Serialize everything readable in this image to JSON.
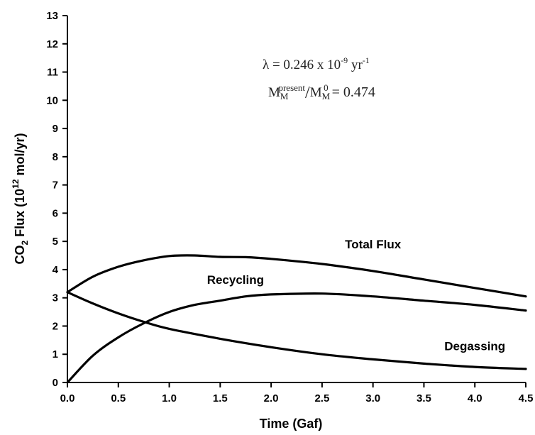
{
  "chart_data": {
    "type": "line",
    "xlabel": "Time (Gaf)",
    "ylabel": {
      "prefix": "CO",
      "subscript": "2",
      "middle": " Flux (10",
      "superscript": "12",
      "suffix": " mol/yr)"
    },
    "xlim": [
      0,
      4.5
    ],
    "ylim": [
      0,
      13
    ],
    "xticks": [
      "0.0",
      "0.5",
      "1.0",
      "1.5",
      "2.0",
      "2.5",
      "3.0",
      "3.5",
      "4.0",
      "4.5"
    ],
    "yticks": [
      "0",
      "1",
      "2",
      "3",
      "4",
      "5",
      "6",
      "7",
      "8",
      "9",
      "10",
      "11",
      "12",
      "13"
    ],
    "grid": false,
    "annotations": {
      "lambda": {
        "text": "λ = 0.246 x 10",
        "exponent": "-9",
        "unit": " yr",
        "unit_exponent": "-1"
      },
      "ratio": {
        "num_base": "M",
        "num_sub": "M",
        "num_sup": "present",
        "slash": "/",
        "den_base": "M",
        "den_sub": "M",
        "den_sup": "0",
        "value": " = 0.474"
      }
    },
    "series": [
      {
        "name": "Total Flux",
        "x": [
          0,
          0.25,
          0.5,
          0.75,
          1.0,
          1.25,
          1.5,
          1.75,
          2.0,
          2.5,
          3.0,
          3.5,
          4.0,
          4.5
        ],
        "y": [
          3.2,
          3.75,
          4.1,
          4.33,
          4.48,
          4.5,
          4.45,
          4.44,
          4.38,
          4.2,
          3.95,
          3.65,
          3.35,
          3.05
        ]
      },
      {
        "name": "Recycling",
        "x": [
          0,
          0.25,
          0.5,
          0.75,
          1.0,
          1.25,
          1.5,
          1.75,
          2.0,
          2.5,
          3.0,
          3.5,
          4.0,
          4.5
        ],
        "y": [
          0.0,
          0.95,
          1.6,
          2.1,
          2.5,
          2.75,
          2.9,
          3.05,
          3.12,
          3.15,
          3.05,
          2.9,
          2.75,
          2.55
        ]
      },
      {
        "name": "Degassing",
        "x": [
          0,
          0.25,
          0.5,
          0.75,
          1.0,
          1.5,
          2.0,
          2.5,
          3.0,
          3.5,
          4.0,
          4.5
        ],
        "y": [
          3.2,
          2.8,
          2.45,
          2.15,
          1.9,
          1.55,
          1.25,
          1.0,
          0.82,
          0.67,
          0.55,
          0.48
        ]
      }
    ]
  }
}
